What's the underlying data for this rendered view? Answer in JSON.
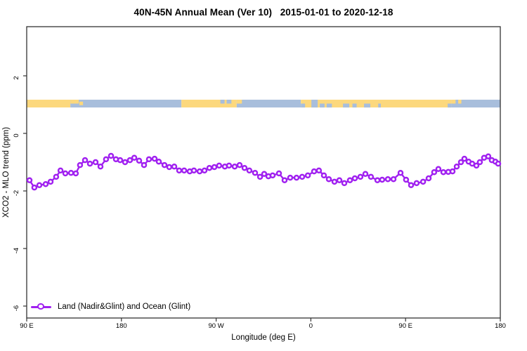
{
  "title": "40N-45N Annual Mean (Ver 10)   2015-01-01 to 2020-12-18",
  "legend": {
    "label": "Land (Nadir&Glint) and Ocean (Glint)"
  },
  "colors": {
    "series": "#A020F0",
    "land": "#FCD87D",
    "ocean": "#A8BEDC",
    "axis": "#333333",
    "text": "#000000",
    "background": "#FFFFFF"
  },
  "chart_data": {
    "type": "line",
    "title": "40N-45N Annual Mean (Ver 10)   2015-01-01 to 2020-12-18",
    "xlabel": "Longitude (deg E)",
    "ylabel": "XCO2 - MLO trend (ppm)",
    "xlim": [
      90,
      540
    ],
    "ylim": [
      -6.4,
      3.7
    ],
    "grid": false,
    "legend_position": "bottom-left-inside",
    "x_ticks": [
      {
        "lon": 90,
        "label": "90 E"
      },
      {
        "lon": 180,
        "label": "180"
      },
      {
        "lon": 270,
        "label": "90 W"
      },
      {
        "lon": 360,
        "label": "0"
      },
      {
        "lon": 450,
        "label": "90 E"
      },
      {
        "lon": 540,
        "label": "180"
      }
    ],
    "y_ticks": [
      {
        "value": 2,
        "label": "2"
      },
      {
        "value": 0,
        "label": "0"
      },
      {
        "value": -2,
        "label": "-2"
      },
      {
        "value": -4,
        "label": "-4"
      },
      {
        "value": -6,
        "label": "-6"
      }
    ],
    "surface_band": {
      "description": "land-ocean mask strip along 40N-45N",
      "value_range": [
        0.9,
        1.17
      ],
      "segments": [
        {
          "type": "land",
          "from": 90,
          "to": 131.5
        },
        {
          "type": "ocean",
          "from": 131.5,
          "to": 237
        },
        {
          "type": "land",
          "from": 237,
          "to": 289.5
        },
        {
          "type": "ocean",
          "from": 289.5,
          "to": 350.5
        },
        {
          "type": "land",
          "from": 350.5,
          "to": 493.5
        },
        {
          "type": "ocean",
          "from": 493.5,
          "to": 540
        }
      ],
      "patches": [
        {
          "type": "land",
          "from": 131.5,
          "to": 139.5,
          "pos": "top"
        },
        {
          "type": "land",
          "from": 140,
          "to": 143.5,
          "pos": "mid"
        },
        {
          "type": "ocean",
          "from": 274,
          "to": 278,
          "pos": "top"
        },
        {
          "type": "ocean",
          "from": 280,
          "to": 284.5,
          "pos": "top"
        },
        {
          "type": "land",
          "from": 289.5,
          "to": 294.5,
          "pos": "top"
        },
        {
          "type": "ocean",
          "from": 350.5,
          "to": 354.5,
          "pos": "bottom"
        },
        {
          "type": "ocean",
          "from": 360.5,
          "to": 366.5,
          "pos": "full"
        },
        {
          "type": "ocean",
          "from": 368.5,
          "to": 373,
          "pos": "bottom"
        },
        {
          "type": "ocean",
          "from": 375,
          "to": 380,
          "pos": "bottom"
        },
        {
          "type": "ocean",
          "from": 390.5,
          "to": 396.5,
          "pos": "bottom"
        },
        {
          "type": "ocean",
          "from": 399.5,
          "to": 403.5,
          "pos": "bottom"
        },
        {
          "type": "ocean",
          "from": 410.5,
          "to": 416.5,
          "pos": "bottom"
        },
        {
          "type": "ocean",
          "from": 424,
          "to": 426.5,
          "pos": "bottom"
        },
        {
          "type": "ocean",
          "from": 490,
          "to": 493.5,
          "pos": "bottom"
        },
        {
          "type": "land",
          "from": 493.5,
          "to": 497.5,
          "pos": "top"
        },
        {
          "type": "land",
          "from": 500,
          "to": 503,
          "pos": "top"
        }
      ]
    },
    "series": [
      {
        "name": "Land (Nadir&Glint) and Ocean (Glint)",
        "color": "#A020F0",
        "marker": "open-circle",
        "points": [
          [
            92.7,
            -1.63
          ],
          [
            97.3,
            -1.88
          ],
          [
            102.0,
            -1.8
          ],
          [
            108.0,
            -1.76
          ],
          [
            112.7,
            -1.68
          ],
          [
            118.0,
            -1.51
          ],
          [
            122.1,
            -1.29
          ],
          [
            126.7,
            -1.39
          ],
          [
            132.1,
            -1.37
          ],
          [
            136.7,
            -1.39
          ],
          [
            140.7,
            -1.1
          ],
          [
            145.4,
            -0.93
          ],
          [
            150.1,
            -1.05
          ],
          [
            155.4,
            -1.0
          ],
          [
            160.1,
            -1.15
          ],
          [
            165.4,
            -0.9
          ],
          [
            170.1,
            -0.78
          ],
          [
            174.8,
            -0.9
          ],
          [
            178.8,
            -0.93
          ],
          [
            183.5,
            -1.0
          ],
          [
            188.1,
            -0.93
          ],
          [
            192.2,
            -0.85
          ],
          [
            196.8,
            -0.95
          ],
          [
            201.5,
            -1.1
          ],
          [
            206.2,
            -0.9
          ],
          [
            211.5,
            -0.88
          ],
          [
            215.5,
            -0.98
          ],
          [
            220.9,
            -1.1
          ],
          [
            225.5,
            -1.17
          ],
          [
            230.2,
            -1.15
          ],
          [
            234.9,
            -1.29
          ],
          [
            239.6,
            -1.29
          ],
          [
            244.9,
            -1.32
          ],
          [
            248.9,
            -1.29
          ],
          [
            254.3,
            -1.32
          ],
          [
            258.9,
            -1.29
          ],
          [
            263.6,
            -1.2
          ],
          [
            268.3,
            -1.17
          ],
          [
            272.9,
            -1.12
          ],
          [
            278.3,
            -1.15
          ],
          [
            282.3,
            -1.12
          ],
          [
            287.6,
            -1.15
          ],
          [
            292.3,
            -1.1
          ],
          [
            297.0,
            -1.2
          ],
          [
            301.6,
            -1.29
          ],
          [
            307.0,
            -1.37
          ],
          [
            311.7,
            -1.51
          ],
          [
            315.7,
            -1.41
          ],
          [
            319.7,
            -1.49
          ],
          [
            323.7,
            -1.46
          ],
          [
            329.7,
            -1.39
          ],
          [
            335.0,
            -1.63
          ],
          [
            340.4,
            -1.54
          ],
          [
            346.4,
            -1.54
          ],
          [
            351.7,
            -1.51
          ],
          [
            357.1,
            -1.46
          ],
          [
            363.1,
            -1.32
          ],
          [
            367.7,
            -1.29
          ],
          [
            372.4,
            -1.46
          ],
          [
            377.1,
            -1.59
          ],
          [
            382.4,
            -1.68
          ],
          [
            387.1,
            -1.63
          ],
          [
            391.8,
            -1.73
          ],
          [
            397.1,
            -1.63
          ],
          [
            401.8,
            -1.56
          ],
          [
            407.1,
            -1.51
          ],
          [
            411.8,
            -1.41
          ],
          [
            417.1,
            -1.51
          ],
          [
            423.2,
            -1.63
          ],
          [
            427.8,
            -1.61
          ],
          [
            433.2,
            -1.59
          ],
          [
            438.5,
            -1.59
          ],
          [
            445.2,
            -1.37
          ],
          [
            450.5,
            -1.61
          ],
          [
            455.2,
            -1.8
          ],
          [
            460.5,
            -1.73
          ],
          [
            466.6,
            -1.68
          ],
          [
            471.9,
            -1.56
          ],
          [
            477.2,
            -1.35
          ],
          [
            481.2,
            -1.24
          ],
          [
            485.9,
            -1.35
          ],
          [
            490.6,
            -1.34
          ],
          [
            494.6,
            -1.32
          ],
          [
            498.6,
            -1.15
          ],
          [
            502.6,
            -1.0
          ],
          [
            505.9,
            -0.88
          ],
          [
            509.9,
            -0.98
          ],
          [
            513.3,
            -1.05
          ],
          [
            517.3,
            -1.12
          ],
          [
            520.6,
            -1.0
          ],
          [
            524.6,
            -0.85
          ],
          [
            528.6,
            -0.8
          ],
          [
            531.9,
            -0.93
          ],
          [
            535.3,
            -0.98
          ],
          [
            538.0,
            -1.05
          ]
        ]
      }
    ]
  }
}
